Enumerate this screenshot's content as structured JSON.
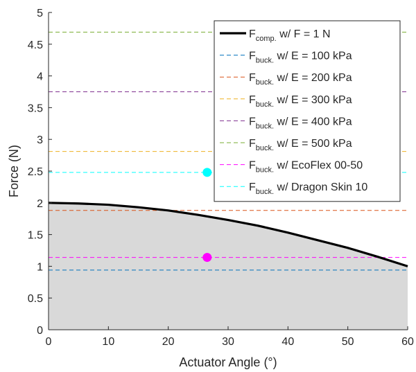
{
  "chart_data": {
    "type": "line",
    "xlabel": "Actuator Angle (°)",
    "ylabel": "Force (N)",
    "xlim": [
      0,
      60
    ],
    "ylim": [
      0,
      5
    ],
    "xticks": [
      0,
      10,
      20,
      30,
      40,
      50,
      60
    ],
    "yticks": [
      0,
      0.5,
      1,
      1.5,
      2,
      2.5,
      3,
      3.5,
      4,
      4.5,
      5
    ],
    "grid": false,
    "legend_position": "top-right",
    "fill_under_curve": true,
    "fill_color": "#d9d9d9",
    "series": [
      {
        "name_main": "F",
        "name_sub": "comp.",
        "name_rest": " w/ F = 1 N",
        "style": "solid",
        "color": "#000000",
        "x": [
          0,
          5,
          10,
          15,
          20,
          25,
          30,
          35,
          40,
          45,
          50,
          55,
          60
        ],
        "y": [
          2.0,
          1.99,
          1.97,
          1.93,
          1.88,
          1.81,
          1.73,
          1.64,
          1.53,
          1.41,
          1.29,
          1.15,
          1.0
        ]
      },
      {
        "name_main": "F",
        "name_sub": "buck.",
        "name_rest": " w/ E = 100 kPa",
        "style": "dashed",
        "color": "#0072bd",
        "value": 0.94
      },
      {
        "name_main": "F",
        "name_sub": "buck.",
        "name_rest": " w/ E = 200 kPa",
        "style": "dashed",
        "color": "#d95319",
        "value": 1.88
      },
      {
        "name_main": "F",
        "name_sub": "buck.",
        "name_rest": " w/ E = 300 kPa",
        "style": "dashed",
        "color": "#edb120",
        "value": 2.81
      },
      {
        "name_main": "F",
        "name_sub": "buck.",
        "name_rest": " w/ E = 400 kPa",
        "style": "dashed",
        "color": "#7e2f8e",
        "value": 3.75
      },
      {
        "name_main": "F",
        "name_sub": "buck.",
        "name_rest": " w/ E = 500 kPa",
        "style": "dashed",
        "color": "#77ac30",
        "value": 4.69
      },
      {
        "name_main": "F",
        "name_sub": "buck.",
        "name_rest": " w/ EcoFlex 00-50",
        "style": "dashed",
        "color": "#ff00ff",
        "value": 1.14,
        "marker": {
          "x": 26.5,
          "y": 1.14
        }
      },
      {
        "name_main": "F",
        "name_sub": "buck.",
        "name_rest": " w/ Dragon Skin 10",
        "style": "dashed",
        "color": "#00ffff",
        "value": 2.48,
        "marker": {
          "x": 26.5,
          "y": 2.48
        }
      }
    ]
  }
}
